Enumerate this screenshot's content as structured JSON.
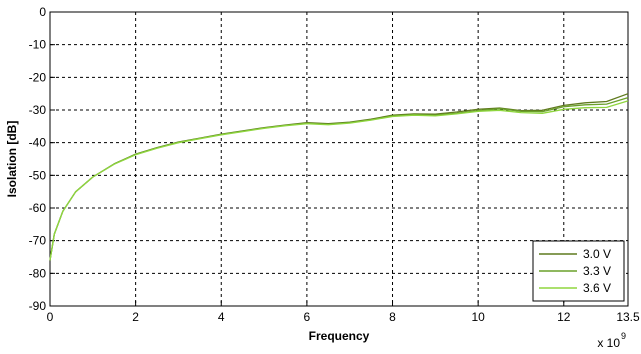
{
  "chart_data": {
    "type": "line",
    "title": "",
    "xlabel": "Frequency",
    "ylabel": "Isolation [dB]",
    "x_multiplier_label": "x 10",
    "x_multiplier_exponent": "9",
    "xlim": [
      0,
      13.5
    ],
    "ylim": [
      -90,
      0
    ],
    "x_ticks": [
      "0",
      "2",
      "4",
      "6",
      "8",
      "10",
      "12",
      "13.5"
    ],
    "x_tick_values": [
      0,
      2,
      4,
      6,
      8,
      10,
      12,
      13.5
    ],
    "y_ticks": [
      "0",
      "-10",
      "-20",
      "-30",
      "-40",
      "-50",
      "-60",
      "-70",
      "-80",
      "-90"
    ],
    "y_tick_values": [
      0,
      -10,
      -20,
      -30,
      -40,
      -50,
      -60,
      -70,
      -80,
      -90
    ],
    "grid": true,
    "legend_position": "bottom-right",
    "x": [
      0,
      0.1,
      0.3,
      0.6,
      1.0,
      1.5,
      2.0,
      2.5,
      3.0,
      3.5,
      4.0,
      4.5,
      5.0,
      5.5,
      6.0,
      6.5,
      7.0,
      7.5,
      8.0,
      8.5,
      9.0,
      9.5,
      10.0,
      10.5,
      11.0,
      11.5,
      12.0,
      12.5,
      13.0,
      13.5
    ],
    "series": [
      {
        "name": "3.0 V",
        "color": "#5f7a1e",
        "values": [
          -76,
          -68,
          -61,
          -55,
          -50.5,
          -46.5,
          -43.5,
          -41.5,
          -39.8,
          -38.6,
          -37.4,
          -36.4,
          -35.4,
          -34.6,
          -33.9,
          -34.2,
          -33.7,
          -32.8,
          -31.6,
          -31.2,
          -31.3,
          -30.6,
          -29.8,
          -29.4,
          -30.2,
          -30.1,
          -28.6,
          -27.8,
          -27.4,
          -25.0
        ]
      },
      {
        "name": "3.3 V",
        "color": "#6aa02a",
        "values": [
          -76,
          -68,
          -61,
          -55,
          -50.5,
          -46.5,
          -43.6,
          -41.6,
          -39.9,
          -38.7,
          -37.5,
          -36.5,
          -35.5,
          -34.7,
          -34.1,
          -34.4,
          -33.9,
          -33.0,
          -31.8,
          -31.4,
          -31.6,
          -31.0,
          -30.2,
          -29.6,
          -30.4,
          -30.5,
          -29.0,
          -28.4,
          -28.2,
          -26.2
        ]
      },
      {
        "name": "3.6 V",
        "color": "#8fd63f",
        "values": [
          -76,
          -68,
          -61,
          -55,
          -50.5,
          -46.6,
          -43.7,
          -41.7,
          -40.0,
          -38.8,
          -37.6,
          -36.6,
          -35.6,
          -34.8,
          -34.2,
          -34.5,
          -34.0,
          -33.1,
          -32.0,
          -31.6,
          -31.8,
          -31.2,
          -30.4,
          -30.1,
          -30.8,
          -31.0,
          -29.8,
          -29.3,
          -29.2,
          -27.2
        ]
      }
    ]
  }
}
